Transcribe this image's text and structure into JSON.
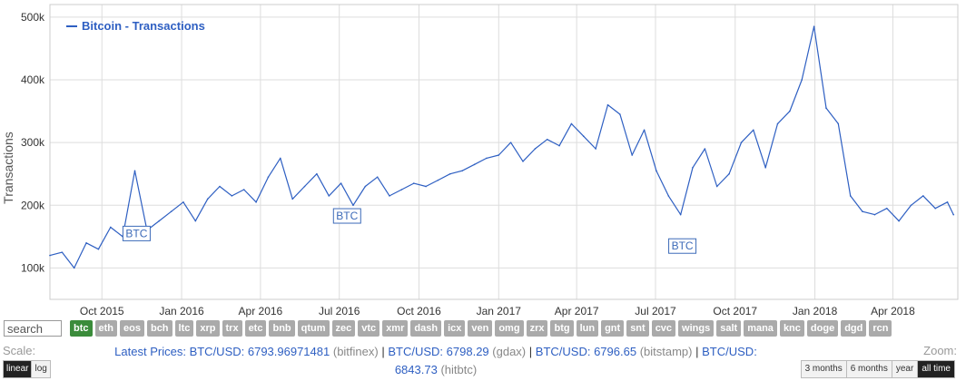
{
  "legend": {
    "label": "Bitcoin - Transactions",
    "color": "#2e5fc2"
  },
  "search": {
    "placeholder": "search"
  },
  "coins": [
    "btc",
    "eth",
    "eos",
    "bch",
    "ltc",
    "xrp",
    "trx",
    "etc",
    "bnb",
    "qtum",
    "zec",
    "vtc",
    "xmr",
    "dash",
    "icx",
    "ven",
    "omg",
    "zrx",
    "btg",
    "lun",
    "gnt",
    "snt",
    "cvc",
    "wings",
    "salt",
    "mana",
    "knc",
    "doge",
    "dgd",
    "rcn"
  ],
  "active_coin": "btc",
  "scale": {
    "label": "Scale:",
    "options": [
      "linear",
      "log"
    ],
    "active": "linear"
  },
  "zoom": {
    "label": "Zoom:",
    "options": [
      "3 months",
      "6 months",
      "year",
      "all time"
    ],
    "active": "all time"
  },
  "prices": {
    "label": "Latest Prices:",
    "items": [
      {
        "pair": "BTC/USD:",
        "value": "6793.96971481",
        "exchange": "(bitfinex)"
      },
      {
        "pair": "BTC/USD:",
        "value": "6798.29",
        "exchange": "(gdax)"
      },
      {
        "pair": "BTC/USD:",
        "value": "6796.65",
        "exchange": "(bitstamp)"
      },
      {
        "pair": "BTC/USD:",
        "value": "6843.73",
        "exchange": "(hitbtc)"
      }
    ]
  },
  "chart_data": {
    "type": "line",
    "title": "",
    "xlabel": "",
    "ylabel": "Transactions",
    "ylim": [
      50000,
      520000
    ],
    "xlim": [
      "2015-08-02",
      "2018-06-15"
    ],
    "y_ticks": [
      100000,
      200000,
      300000,
      400000,
      500000
    ],
    "y_tick_labels": [
      "100k",
      "200k",
      "300k",
      "400k",
      "500k"
    ],
    "x_ticks": [
      "2015-10-01",
      "2016-01-01",
      "2016-04-01",
      "2016-07-01",
      "2016-10-01",
      "2017-01-01",
      "2017-04-01",
      "2017-07-01",
      "2017-10-01",
      "2018-01-01",
      "2018-04-01"
    ],
    "x_tick_labels": [
      "Oct 2015",
      "Jan 2016",
      "Apr 2016",
      "Jul 2016",
      "Oct 2016",
      "Jan 2017",
      "Apr 2017",
      "Jul 2017",
      "Oct 2017",
      "Jan 2018",
      "Apr 2018"
    ],
    "grid": true,
    "legend_position": "top-left",
    "flags": [
      {
        "label": "BTC",
        "date": "2015-11-10",
        "value": 155000
      },
      {
        "label": "BTC",
        "date": "2016-07-10",
        "value": 183000
      },
      {
        "label": "BTC",
        "date": "2017-08-01",
        "value": 135000
      }
    ],
    "series": [
      {
        "name": "Bitcoin - Transactions",
        "color": "#2e5fc2",
        "x": [
          "2015-08-02",
          "2015-08-16",
          "2015-08-30",
          "2015-09-13",
          "2015-09-27",
          "2015-10-11",
          "2015-10-25",
          "2015-11-08",
          "2015-11-22",
          "2015-12-06",
          "2015-12-20",
          "2016-01-03",
          "2016-01-17",
          "2016-01-31",
          "2016-02-14",
          "2016-02-28",
          "2016-03-13",
          "2016-03-27",
          "2016-04-10",
          "2016-04-24",
          "2016-05-08",
          "2016-05-22",
          "2016-06-05",
          "2016-06-19",
          "2016-07-03",
          "2016-07-17",
          "2016-07-31",
          "2016-08-14",
          "2016-08-28",
          "2016-09-11",
          "2016-09-25",
          "2016-10-09",
          "2016-10-23",
          "2016-11-06",
          "2016-11-20",
          "2016-12-04",
          "2016-12-18",
          "2017-01-01",
          "2017-01-15",
          "2017-01-29",
          "2017-02-12",
          "2017-02-26",
          "2017-03-12",
          "2017-03-26",
          "2017-04-09",
          "2017-04-23",
          "2017-05-07",
          "2017-05-21",
          "2017-06-04",
          "2017-06-18",
          "2017-07-02",
          "2017-07-16",
          "2017-07-30",
          "2017-08-13",
          "2017-08-27",
          "2017-09-10",
          "2017-09-24",
          "2017-10-08",
          "2017-10-22",
          "2017-11-05",
          "2017-11-19",
          "2017-12-03",
          "2017-12-17",
          "2017-12-31",
          "2018-01-14",
          "2018-01-28",
          "2018-02-11",
          "2018-02-25",
          "2018-03-11",
          "2018-03-25",
          "2018-04-08",
          "2018-04-22",
          "2018-05-06",
          "2018-05-20",
          "2018-06-03",
          "2018-06-10"
        ],
        "values": [
          120000,
          125000,
          100000,
          140000,
          130000,
          165000,
          150000,
          255000,
          160000,
          175000,
          190000,
          205000,
          175000,
          210000,
          230000,
          215000,
          225000,
          205000,
          245000,
          275000,
          210000,
          230000,
          250000,
          215000,
          235000,
          200000,
          230000,
          245000,
          215000,
          225000,
          235000,
          230000,
          240000,
          250000,
          255000,
          265000,
          275000,
          280000,
          300000,
          270000,
          290000,
          305000,
          295000,
          330000,
          310000,
          290000,
          360000,
          345000,
          280000,
          320000,
          255000,
          215000,
          185000,
          260000,
          290000,
          230000,
          250000,
          300000,
          320000,
          260000,
          330000,
          350000,
          400000,
          485000,
          355000,
          330000,
          215000,
          190000,
          185000,
          195000,
          175000,
          200000,
          215000,
          195000,
          205000,
          185000
        ]
      }
    ]
  }
}
